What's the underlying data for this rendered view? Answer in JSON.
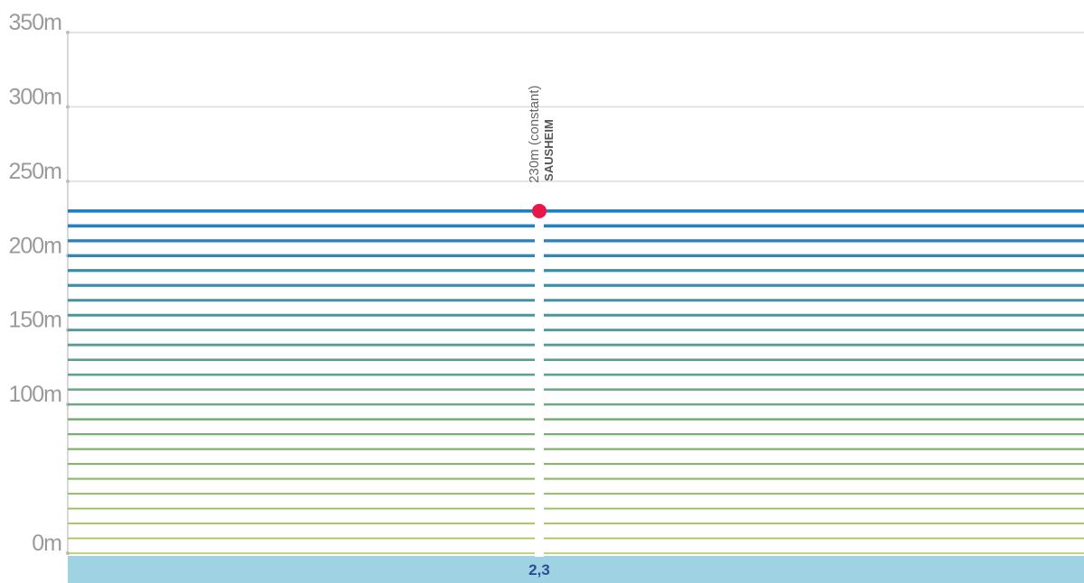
{
  "chart_data": {
    "type": "area",
    "ylim": [
      0,
      350
    ],
    "y_ticks": [
      {
        "value": 0,
        "label": "0m"
      },
      {
        "value": 100,
        "label": "100m"
      },
      {
        "value": 150,
        "label": "150m"
      },
      {
        "value": 200,
        "label": "200m"
      },
      {
        "value": 250,
        "label": "250m"
      },
      {
        "value": 300,
        "label": "300m"
      },
      {
        "value": 350,
        "label": "350m"
      }
    ],
    "grid": true,
    "profile_band_step": 10,
    "profile_value": 230,
    "point": {
      "km": "2,3",
      "altitude": 230,
      "altitude_label": "230m (constant)",
      "place": "SAUSHEIM",
      "color": "#e8174a"
    },
    "colors": {
      "band_low": "#a9c94b",
      "band_high": "#1f7fc2",
      "strip": "#9fd2e3",
      "grid": "#dcdcdc",
      "axis": "#cccccc"
    }
  }
}
